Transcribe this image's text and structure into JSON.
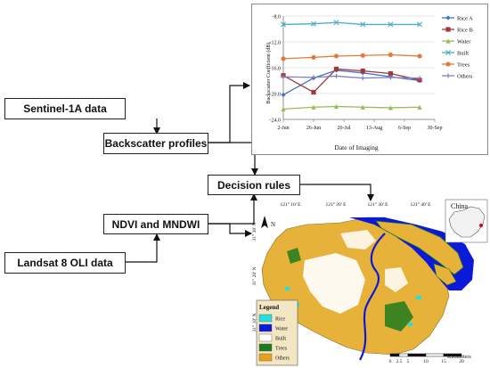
{
  "flow": {
    "sentinel": "Sentinel-1A data",
    "backscatter": "Backscatter profiles",
    "decision": "Decision rules",
    "ndvi": "NDVI and MNDWI",
    "landsat": "Landsat 8 OLI data"
  },
  "chart_data": {
    "type": "line",
    "title": "",
    "xlabel": "Date of Imaging",
    "ylabel": "Backscatter Coefficient (dB)",
    "x_ticks": [
      "2-Jun",
      "26-Jun",
      "20-Jul",
      "13-Aug",
      "6-Sep",
      "30-Sep"
    ],
    "y_ticks": [
      "-8.0",
      "-12.0",
      "-16.0",
      "-20.0",
      "-24.0"
    ],
    "ylim": [
      -24,
      -8
    ],
    "x": [
      "2-Jun",
      "26-Jun",
      "14-Jul",
      "4-Aug",
      "26-Aug",
      "18-Sep"
    ],
    "grid": true,
    "legend_position": "right",
    "series": [
      {
        "name": "Rice A",
        "color": "#4472C4",
        "marker": "diamond",
        "values": [
          -20.2,
          -17.6,
          -16.4,
          -16.8,
          -17.4,
          -18.0
        ]
      },
      {
        "name": "Rice B",
        "color": "#A0393A",
        "marker": "square",
        "values": [
          -17.2,
          -19.8,
          -16.2,
          -16.5,
          -16.9,
          -17.9
        ]
      },
      {
        "name": "Water",
        "color": "#9BBB59",
        "marker": "triangle",
        "values": [
          -22.4,
          -22.1,
          -22.0,
          -22.1,
          -22.2,
          -22.1
        ]
      },
      {
        "name": "Built",
        "color": "#4BACC6",
        "marker": "x",
        "values": [
          -9.3,
          -9.2,
          -9.0,
          -9.3,
          -9.3,
          -9.3
        ]
      },
      {
        "name": "Trees",
        "color": "#E07B39",
        "marker": "circle",
        "values": [
          -14.6,
          -14.4,
          -14.2,
          -14.1,
          -14.0,
          -14.2
        ]
      },
      {
        "name": "Others",
        "color": "#7F7FBF",
        "marker": "plus",
        "values": [
          -17.4,
          -17.5,
          -17.3,
          -17.6,
          -17.5,
          -17.6
        ]
      }
    ]
  },
  "map": {
    "lon_labels": [
      "121° 10' E",
      "121° 20' E",
      "121° 30' E",
      "121° 40' E",
      "121° 50' E"
    ],
    "lat_labels": [
      "31° 30' N",
      "31° 20' N",
      "31° 10' N"
    ],
    "inset_label": "China",
    "north_label": "N",
    "legend_title": "Legend",
    "legend": [
      {
        "label": "Rice",
        "color": "#22E0E0"
      },
      {
        "label": "Water",
        "color": "#0A1AD8"
      },
      {
        "label": "Built",
        "color": "#FFFFFF"
      },
      {
        "label": "Trees",
        "color": "#1E7A1E"
      },
      {
        "label": "Others",
        "color": "#E8A21A"
      }
    ],
    "scale_ticks": [
      "0",
      "2.5",
      "5",
      "10",
      "15",
      "20"
    ],
    "scale_unit": "Kilometers"
  }
}
